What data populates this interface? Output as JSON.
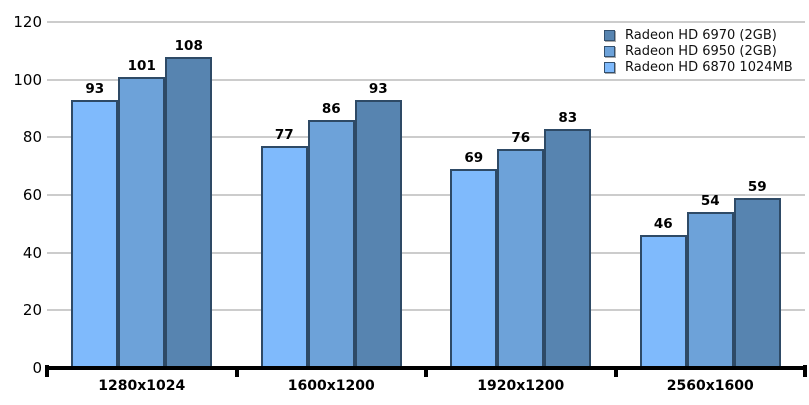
{
  "chart_data": {
    "type": "bar",
    "title": "",
    "xlabel": "",
    "ylabel": "",
    "categories": [
      "1280x1024",
      "1600x1200",
      "1920x1200",
      "2560x1600"
    ],
    "series": [
      {
        "name": "Radeon HD 6970 (2GB)",
        "color": "#5784b0",
        "values": [
          108,
          93,
          83,
          59
        ]
      },
      {
        "name": "Radeon HD 6950 (2GB)",
        "color": "#6da2d9",
        "values": [
          101,
          86,
          76,
          54
        ]
      },
      {
        "name": "Radeon HD 6870 1024MB",
        "color": "#7fbafc",
        "values": [
          93,
          77,
          69,
          46
        ]
      }
    ],
    "ylim": [
      0,
      120
    ],
    "yticks": [
      0,
      20,
      40,
      60,
      80,
      100,
      120
    ],
    "grid": true,
    "legend_position": "top-right",
    "value_labels": true,
    "bar_draw_order": "reverse-of-legend"
  },
  "colors": {
    "grid": "#cccccc",
    "axis": "#000000",
    "bar_border": "#2e4a66",
    "text": "#000000",
    "background": "#ffffff"
  }
}
